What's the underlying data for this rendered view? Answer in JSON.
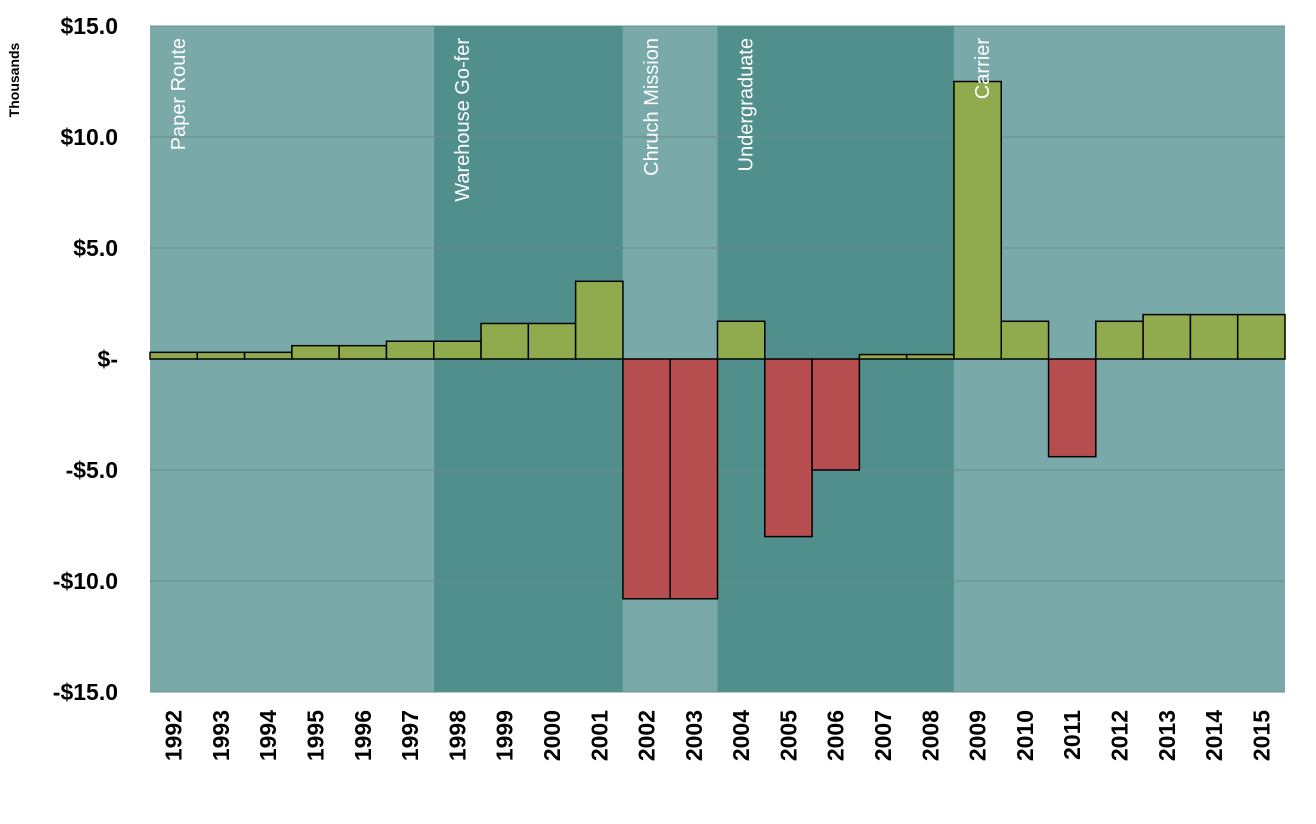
{
  "chart_data": {
    "type": "bar",
    "title": "",
    "xlabel": "",
    "ylabel": "Thousands",
    "categories": [
      "1992",
      "1993",
      "1994",
      "1995",
      "1996",
      "1997",
      "1998",
      "1999",
      "2000",
      "2001",
      "2002",
      "2003",
      "2004",
      "2005",
      "2006",
      "2007",
      "2008",
      "2009",
      "2010",
      "2011",
      "2012",
      "2013",
      "2014",
      "2015"
    ],
    "values": [
      0.3,
      0.3,
      0.3,
      0.6,
      0.6,
      0.8,
      0.8,
      1.6,
      1.6,
      3.5,
      -10.8,
      -10.8,
      1.7,
      -8.0,
      -5.0,
      0.2,
      0.2,
      12.5,
      1.7,
      -4.4,
      1.7,
      2.0,
      2.0,
      2.0
    ],
    "ylim": [
      -15,
      15
    ],
    "yticks": [
      15,
      10,
      5,
      0,
      -5,
      -10,
      -15
    ],
    "ytick_labels": [
      "$15.0",
      "$10.0",
      "$5.0",
      "$-",
      "-$5.0",
      "-$10.0",
      "-$15.0"
    ],
    "grid": true,
    "legend": "none",
    "colors": {
      "positive": "#8fab4e",
      "negative": "#b64d4f",
      "band_light": "#79a9a9",
      "band_dark": "#518f8d",
      "gridline": "#6c8c89",
      "bar_edge": "#000000"
    },
    "bands": [
      {
        "label": "Paper Route",
        "start": "1992",
        "end": "1997",
        "shade": "light"
      },
      {
        "label": "Warehouse Go-fer",
        "start": "1998",
        "end": "2001",
        "shade": "dark"
      },
      {
        "label": "Chruch Mission",
        "start": "2002",
        "end": "2003",
        "shade": "light"
      },
      {
        "label": "Undergraduate",
        "start": "2004",
        "end": "2008",
        "shade": "dark"
      },
      {
        "label": "Carrier",
        "start": "2009",
        "end": "2015",
        "shade": "light"
      }
    ]
  }
}
